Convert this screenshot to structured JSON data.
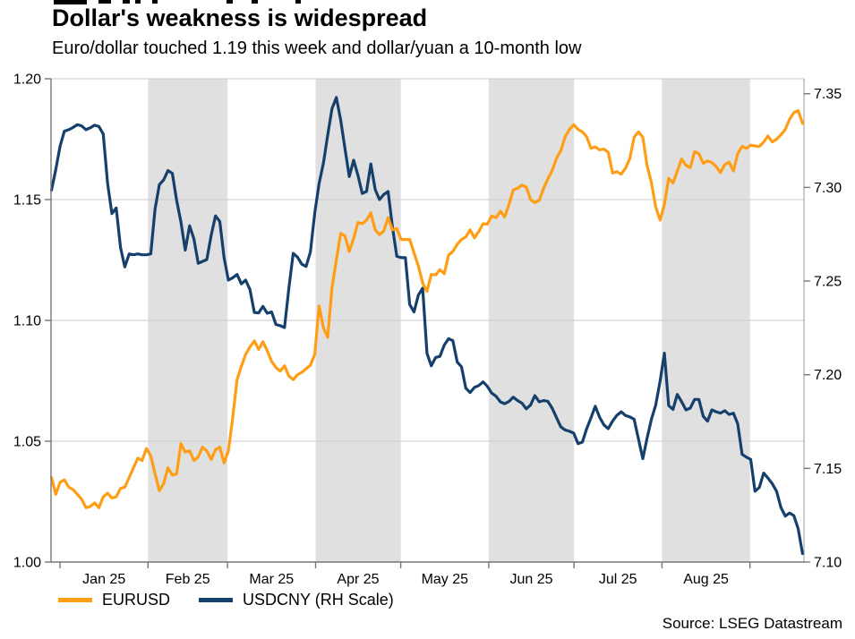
{
  "header": {
    "title": "Dollar's weakness is widespread",
    "subtitle": "Euro/dollar touched 1.19 this week and dollar/yuan a 10-month low"
  },
  "source": "Source: LSEG Datastream",
  "colors": {
    "eurusd": "#FF9E16",
    "usdcny": "#16406C",
    "band": "#E0E0E0",
    "grid": "#CBCBCB",
    "axis": "#767676",
    "frame_top": "#C8C8C8",
    "frame_right": "#9A9A9A"
  },
  "chart_data": {
    "type": "line",
    "title": "Dollar's weakness is widespread",
    "subtitle": "Euro/dollar touched 1.19 this week and dollar/yuan a 10-month low",
    "source": "Source: LSEG Datastream",
    "legend_position": "bottom-left",
    "x_axis": {
      "unit": "days from Jan 1 2025",
      "min": -3.15,
      "max": 262,
      "month_tick_days": [
        0,
        31,
        59,
        90,
        120,
        151,
        181,
        212,
        243
      ],
      "month_label_days": [
        15.5,
        45,
        74.5,
        105,
        135.5,
        166,
        196.5,
        227.5
      ],
      "month_labels": [
        "Jan 25",
        "Feb 25",
        "Mar 25",
        "Apr 25",
        "May 25",
        "Jun 25",
        "Jul 25",
        "Aug 25"
      ]
    },
    "left_axis": {
      "series": "EURUSD",
      "min": 1.0,
      "max": 1.2,
      "tick_values": [
        1.0,
        1.05,
        1.1,
        1.15,
        1.2
      ],
      "tick_labels": [
        "1.00",
        "1.05",
        "1.10",
        "1.15",
        "1.20"
      ]
    },
    "right_axis": {
      "series": "USDCNY",
      "min": 7.1,
      "max": 7.358,
      "tick_values": [
        7.1,
        7.15,
        7.2,
        7.25,
        7.3,
        7.35
      ],
      "tick_labels": [
        "7.10",
        "7.15",
        "7.20",
        "7.25",
        "7.30",
        "7.35"
      ]
    },
    "gridlines_at": [
      1.05,
      1.1,
      1.15
    ],
    "shaded_bands_days": [
      [
        31,
        59
      ],
      [
        90,
        120
      ],
      [
        151,
        181
      ],
      [
        212,
        243
      ]
    ],
    "series": [
      {
        "name": "EURUSD",
        "axis": "left",
        "color": "#FF9E16",
        "x_start_day": -3.0,
        "x_step_days": 1.52,
        "values": [
          1.035,
          1.028,
          1.033,
          1.034,
          1.031,
          1.03,
          1.028,
          1.026,
          1.0225,
          1.023,
          1.0245,
          1.0225,
          1.027,
          1.0285,
          1.0265,
          1.027,
          1.0305,
          1.031,
          1.035,
          1.039,
          1.043,
          1.042,
          1.047,
          1.044,
          1.0365,
          1.0295,
          1.0325,
          1.039,
          1.036,
          1.0365,
          1.049,
          1.0455,
          1.046,
          1.042,
          1.0435,
          1.0475,
          1.046,
          1.0425,
          1.0465,
          1.0475,
          1.041,
          1.046,
          1.06,
          1.0755,
          1.081,
          1.086,
          1.089,
          1.0915,
          1.088,
          1.0912,
          1.0875,
          1.083,
          1.0805,
          1.079,
          1.0812,
          1.077,
          1.0755,
          1.0775,
          1.0785,
          1.08,
          1.0815,
          1.086,
          1.106,
          1.097,
          1.093,
          1.1135,
          1.125,
          1.136,
          1.135,
          1.1285,
          1.134,
          1.1405,
          1.14,
          1.1415,
          1.1445,
          1.1375,
          1.1355,
          1.137,
          1.1425,
          1.1375,
          1.138,
          1.1335,
          1.1335,
          1.1335,
          1.128,
          1.1225,
          1.1155,
          1.112,
          1.119,
          1.1188,
          1.121,
          1.1193,
          1.127,
          1.1285,
          1.1315,
          1.1335,
          1.1345,
          1.1375,
          1.1342,
          1.1368,
          1.14,
          1.1398,
          1.1432,
          1.1425,
          1.1452,
          1.1428,
          1.148,
          1.154,
          1.1547,
          1.156,
          1.1552,
          1.15,
          1.1487,
          1.1497,
          1.1545,
          1.1585,
          1.162,
          1.167,
          1.1702,
          1.176,
          1.179,
          1.181,
          1.179,
          1.178,
          1.176,
          1.1712,
          1.1718,
          1.1706,
          1.1709,
          1.1695,
          1.161,
          1.1615,
          1.1605,
          1.163,
          1.167,
          1.1758,
          1.178,
          1.1758,
          1.164,
          1.157,
          1.147,
          1.1415,
          1.148,
          1.1588,
          1.1568,
          1.1618,
          1.1668,
          1.1642,
          1.1632,
          1.1698,
          1.169,
          1.165,
          1.166,
          1.1653,
          1.1637,
          1.1612,
          1.1645,
          1.1655,
          1.1618,
          1.169,
          1.172,
          1.1712,
          1.1725,
          1.1722,
          1.172,
          1.1738,
          1.1763,
          1.1738,
          1.175,
          1.1768,
          1.179,
          1.1832,
          1.186,
          1.1868,
          1.1815
        ]
      },
      {
        "name": "USDCNY (RH Scale)",
        "axis": "right",
        "color": "#16406C",
        "x_start_day": -3.0,
        "x_step_days": 1.52,
        "values": [
          7.2985,
          7.3095,
          7.322,
          7.33,
          7.3308,
          7.332,
          7.3335,
          7.3328,
          7.3308,
          7.3318,
          7.3332,
          7.3325,
          7.3285,
          7.302,
          7.286,
          7.289,
          7.268,
          7.2575,
          7.2645,
          7.264,
          7.2645,
          7.264,
          7.264,
          7.2645,
          7.2885,
          7.3015,
          7.304,
          7.309,
          7.3075,
          7.293,
          7.2815,
          7.2665,
          7.2795,
          7.2725,
          7.2595,
          7.2605,
          7.2615,
          7.2745,
          7.2848,
          7.2818,
          7.2625,
          7.2505,
          7.2518,
          7.2535,
          7.2485,
          7.2505,
          7.2455,
          7.2332,
          7.233,
          7.2365,
          7.2328,
          7.2335,
          7.2268,
          7.2262,
          7.2252,
          7.246,
          7.2648,
          7.2628,
          7.259,
          7.2578,
          7.2655,
          7.2865,
          7.302,
          7.3128,
          7.3278,
          7.342,
          7.348,
          7.336,
          7.3208,
          7.3058,
          7.3145,
          7.3065,
          7.2968,
          7.2978,
          7.3125,
          7.2988,
          7.2935,
          7.2962,
          7.2978,
          7.279,
          7.2632,
          7.2625,
          7.2625,
          7.2375,
          7.2335,
          7.2425,
          7.2462,
          7.2115,
          7.2048,
          7.2092,
          7.2098,
          7.2158,
          7.2192,
          7.2182,
          7.2068,
          7.2042,
          7.1928,
          7.1905,
          7.1932,
          7.1942,
          7.1962,
          7.1938,
          7.1902,
          7.1885,
          7.1855,
          7.1845,
          7.1857,
          7.188,
          7.1862,
          7.1848,
          7.1818,
          7.1838,
          7.1888,
          7.1855,
          7.1862,
          7.1858,
          7.1822,
          7.1772,
          7.1722,
          7.1705,
          7.1698,
          7.1688,
          7.1632,
          7.164,
          7.1712,
          7.177,
          7.1832,
          7.1772,
          7.1732,
          7.1712,
          7.1752,
          7.1783,
          7.1802,
          7.1782,
          7.1775,
          7.1762,
          7.1658,
          7.1552,
          7.1662,
          7.1762,
          7.1838,
          7.1965,
          7.2115,
          7.1835,
          7.1815,
          7.1895,
          7.1855,
          7.1812,
          7.1822,
          7.1868,
          7.1868,
          7.1778,
          7.1752,
          7.1812,
          7.1802,
          7.1795,
          7.1808,
          7.1788,
          7.1795,
          7.1738,
          7.1575,
          7.156,
          7.1548,
          7.1378,
          7.1398,
          7.1475,
          7.1448,
          7.1418,
          7.1378,
          7.1292,
          7.1245,
          7.1262,
          7.1248,
          7.1178,
          7.1045
        ]
      }
    ]
  }
}
